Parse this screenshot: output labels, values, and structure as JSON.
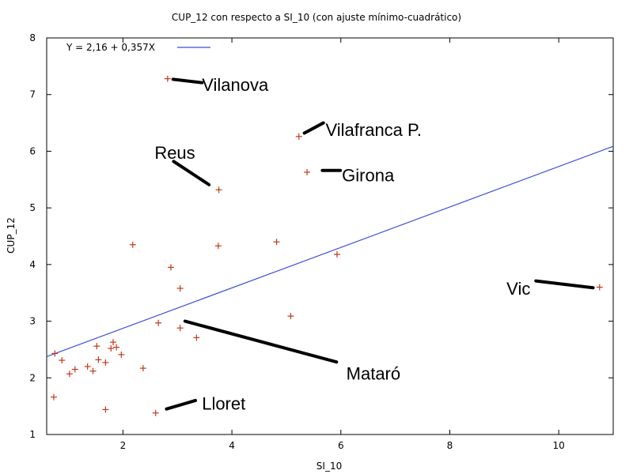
{
  "chart_data": {
    "type": "scatter",
    "title": "CUP_12 con respecto a SI_10 (con ajuste mínimo-cuadrático)",
    "xlabel": "SI_10",
    "ylabel": "CUP_12",
    "xlim": [
      0.6,
      11
    ],
    "ylim": [
      1,
      8
    ],
    "x_ticks": [
      2,
      4,
      6,
      8,
      10
    ],
    "y_ticks": [
      1,
      2,
      3,
      4,
      5,
      6,
      7,
      8
    ],
    "grid": false,
    "legend_position": "top-left",
    "fit": {
      "label": "Y = 2,16 + 0,357X",
      "intercept": 2.16,
      "slope": 0.357,
      "color": "#3b4fd6"
    },
    "marker_color": "#c0391b",
    "points": [
      {
        "x": 2.82,
        "y": 7.28
      },
      {
        "x": 5.23,
        "y": 6.26
      },
      {
        "x": 5.38,
        "y": 5.63
      },
      {
        "x": 3.76,
        "y": 5.32
      },
      {
        "x": 2.18,
        "y": 4.35
      },
      {
        "x": 4.82,
        "y": 4.4
      },
      {
        "x": 3.75,
        "y": 4.33
      },
      {
        "x": 5.93,
        "y": 4.18
      },
      {
        "x": 2.88,
        "y": 3.95
      },
      {
        "x": 3.05,
        "y": 3.58
      },
      {
        "x": 10.75,
        "y": 3.6
      },
      {
        "x": 5.08,
        "y": 3.09
      },
      {
        "x": 2.65,
        "y": 2.97
      },
      {
        "x": 3.05,
        "y": 2.88
      },
      {
        "x": 3.35,
        "y": 2.71
      },
      {
        "x": 0.75,
        "y": 2.43
      },
      {
        "x": 0.88,
        "y": 2.31
      },
      {
        "x": 1.12,
        "y": 2.15
      },
      {
        "x": 1.02,
        "y": 2.07
      },
      {
        "x": 1.35,
        "y": 2.2
      },
      {
        "x": 1.45,
        "y": 2.12
      },
      {
        "x": 1.52,
        "y": 2.56
      },
      {
        "x": 1.55,
        "y": 2.32
      },
      {
        "x": 1.68,
        "y": 2.27
      },
      {
        "x": 1.78,
        "y": 2.52
      },
      {
        "x": 1.82,
        "y": 2.63
      },
      {
        "x": 1.88,
        "y": 2.54
      },
      {
        "x": 1.97,
        "y": 2.41
      },
      {
        "x": 2.37,
        "y": 2.17
      },
      {
        "x": 0.73,
        "y": 1.66
      },
      {
        "x": 1.68,
        "y": 1.44
      },
      {
        "x": 2.6,
        "y": 1.38
      }
    ],
    "annotations": [
      {
        "text": "Vilanova",
        "tx": 3.45,
        "ty": 7.18,
        "anchor": "start",
        "lx1": 2.92,
        "ly1": 7.27,
        "lx2": 3.45,
        "ly2": 7.21
      },
      {
        "text": "Vilafranca P.",
        "tx": 5.72,
        "ty": 6.38,
        "anchor": "start",
        "lx1": 5.33,
        "ly1": 6.32,
        "lx2": 5.68,
        "ly2": 6.5
      },
      {
        "text": "Reus",
        "tx": 2.58,
        "ty": 5.98,
        "anchor": "start",
        "lx1": 2.93,
        "ly1": 5.82,
        "lx2": 3.58,
        "ly2": 5.41
      },
      {
        "text": "Girona",
        "tx": 6.02,
        "ty": 5.58,
        "anchor": "start",
        "lx1": 5.66,
        "ly1": 5.66,
        "lx2": 5.99,
        "ly2": 5.66
      },
      {
        "text": "Vic",
        "tx": 9.48,
        "ty": 3.58,
        "anchor": "end",
        "lx1": 9.58,
        "ly1": 3.71,
        "lx2": 10.63,
        "ly2": 3.59
      },
      {
        "text": "Mataró",
        "tx": 6.1,
        "ty": 2.08,
        "anchor": "start",
        "lx1": 3.14,
        "ly1": 3.0,
        "lx2": 5.92,
        "ly2": 2.28
      },
      {
        "text": "Lloret",
        "tx": 3.45,
        "ty": 1.55,
        "anchor": "start",
        "lx1": 2.8,
        "ly1": 1.45,
        "lx2": 3.33,
        "ly2": 1.6
      }
    ]
  }
}
